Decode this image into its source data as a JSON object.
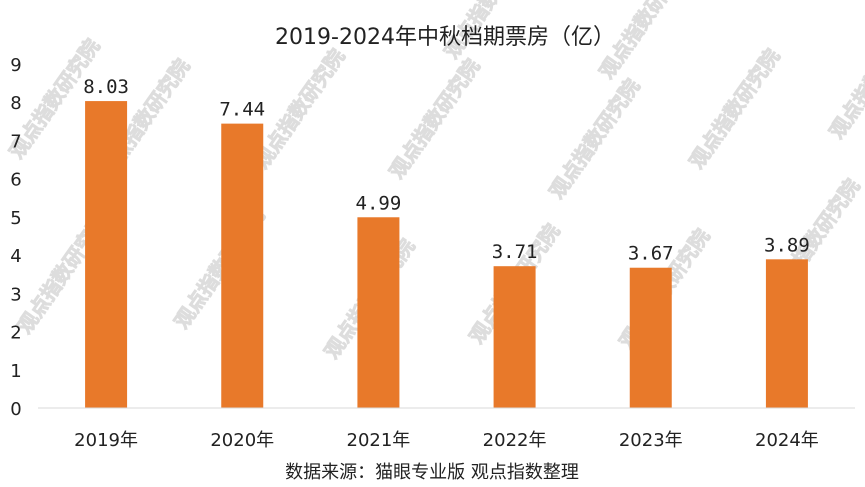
{
  "chart_data": {
    "type": "bar",
    "title": "2019-2024年中秋档期票房（亿）",
    "categories": [
      "2019年",
      "2020年",
      "2021年",
      "2022年",
      "2023年",
      "2024年"
    ],
    "values": [
      8.03,
      7.44,
      4.99,
      3.71,
      3.67,
      3.89
    ],
    "value_labels": [
      "8.03",
      "7.44",
      "4.99",
      "3.71",
      "3.67",
      "3.89"
    ],
    "xlabel": "",
    "ylabel": "",
    "ylim": [
      0,
      9
    ],
    "yticks": [
      0,
      1,
      2,
      3,
      4,
      5,
      6,
      7,
      8,
      9
    ],
    "ytick_labels": [
      "0",
      "1",
      "2",
      "3",
      "4",
      "5",
      "6",
      "7",
      "8",
      "9"
    ],
    "grid": false,
    "legend": "none",
    "bar_color": "#E8792A",
    "source": "数据来源：猫眼专业版   观点指数整理",
    "watermark": "观点指数研究院"
  }
}
